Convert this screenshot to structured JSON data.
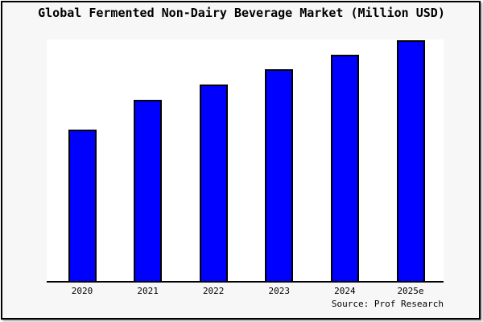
{
  "window": {
    "background_color": "#f7f7f7",
    "frame_border_color": "#000000",
    "plot_background_color": "#ffffff"
  },
  "chart_data": {
    "type": "bar",
    "title": "Global Fermented Non-Dairy Beverage Market (Million USD)",
    "categories": [
      "2020",
      "2021",
      "2022",
      "2023",
      "2024",
      "2025e"
    ],
    "values": [
      188,
      225,
      244,
      263,
      281,
      299
    ],
    "ylim": [
      0,
      300
    ],
    "xlabel": "",
    "ylabel": "",
    "y_axis_ticks_visible": false,
    "grid": false,
    "legend": false,
    "bar_color": "#0000ff",
    "bar_border_color": "#000000",
    "axis_color": "#000000",
    "source_note": "Source: Prof Research"
  }
}
